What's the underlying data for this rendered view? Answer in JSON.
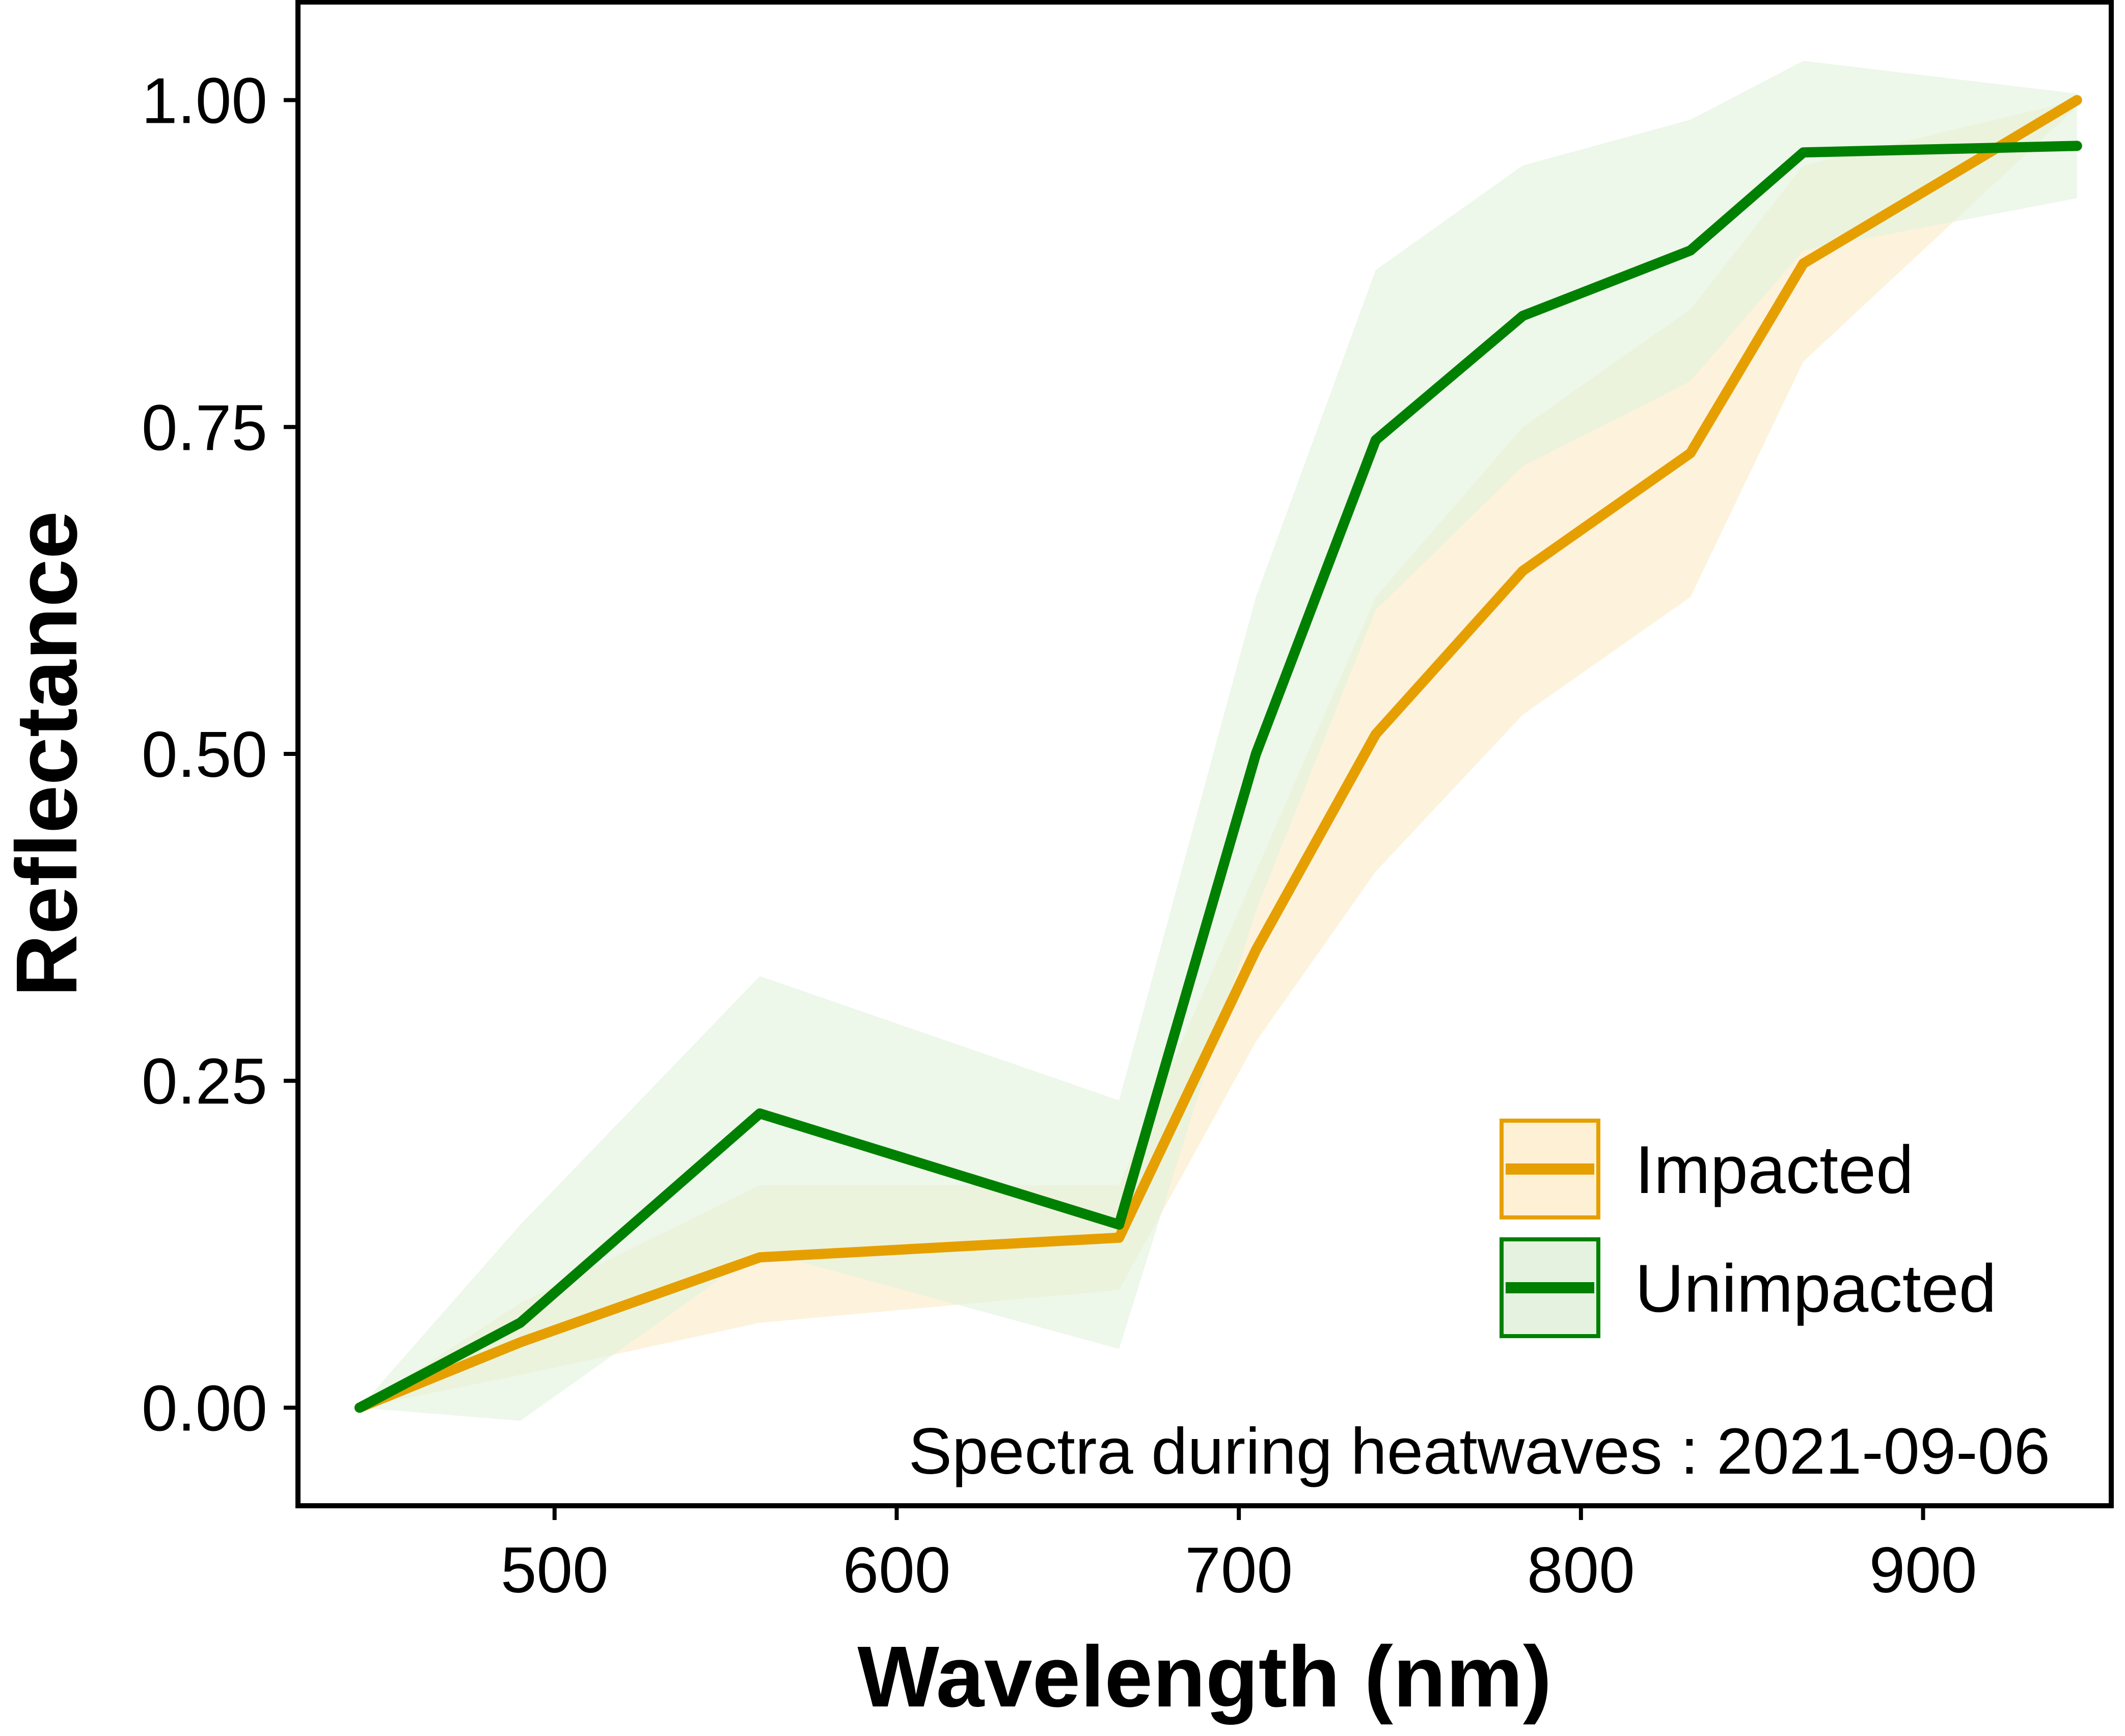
{
  "chart_data": {
    "type": "line",
    "xlabel": "Wavelength (nm)",
    "ylabel": "Reflectance",
    "xlim": [
      425,
      955
    ],
    "ylim": [
      -0.075,
      1.075
    ],
    "x_ticks": [
      500,
      600,
      700,
      800,
      900
    ],
    "y_ticks": [
      0.0,
      0.25,
      0.5,
      0.75,
      1.0
    ],
    "x_tick_labels": [
      "500",
      "600",
      "700",
      "800",
      "900"
    ],
    "y_tick_labels": [
      "0.00",
      "0.25",
      "0.50",
      "0.75",
      "1.00"
    ],
    "grid": false,
    "legend_position": "bottom-right",
    "annotation": "Spectra during heatwaves : 2021-09-06",
    "x": [
      443,
      490,
      560,
      665,
      705,
      740,
      783,
      832,
      865,
      945
    ],
    "series": [
      {
        "name": "Impacted",
        "color": "#E69F00",
        "fill": "#FDF0D5",
        "values": [
          0.0,
          0.05,
          0.115,
          0.13,
          0.35,
          0.515,
          0.64,
          0.73,
          0.875,
          1.0
        ],
        "lower": [
          0.0,
          0.025,
          0.065,
          0.09,
          0.28,
          0.41,
          0.53,
          0.62,
          0.8,
          0.995
        ],
        "upper": [
          0.0,
          0.08,
          0.17,
          0.17,
          0.41,
          0.62,
          0.75,
          0.84,
          0.95,
          1.0
        ]
      },
      {
        "name": "Unimpacted",
        "color": "#008000",
        "fill": "#E4F2DF",
        "values": [
          0.0,
          0.065,
          0.225,
          0.14,
          0.5,
          0.74,
          0.835,
          0.885,
          0.96,
          0.965
        ],
        "lower": [
          0.0,
          -0.01,
          0.12,
          0.045,
          0.38,
          0.61,
          0.72,
          0.785,
          0.885,
          0.925
        ],
        "upper": [
          0.0,
          0.14,
          0.33,
          0.235,
          0.62,
          0.87,
          0.95,
          0.985,
          1.03,
          1.005
        ]
      }
    ]
  }
}
